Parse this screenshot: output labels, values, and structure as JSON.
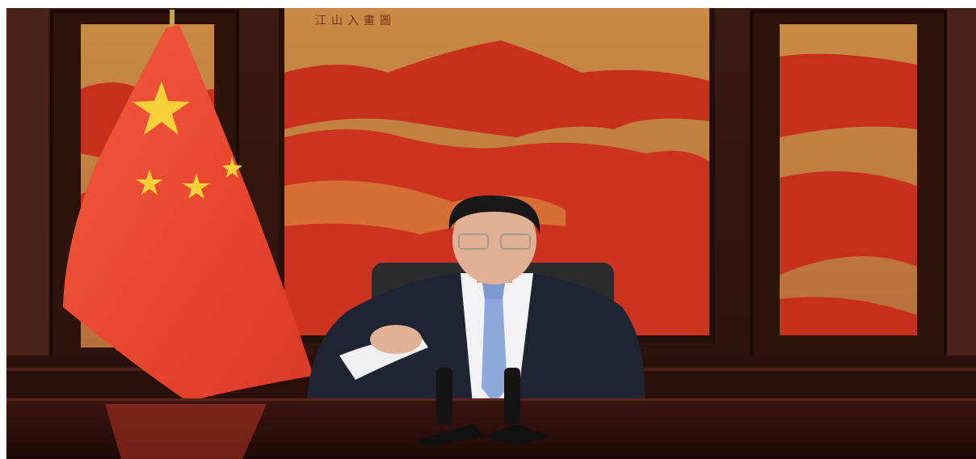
{
  "painting": {
    "inscription": "江山入畫圖"
  }
}
